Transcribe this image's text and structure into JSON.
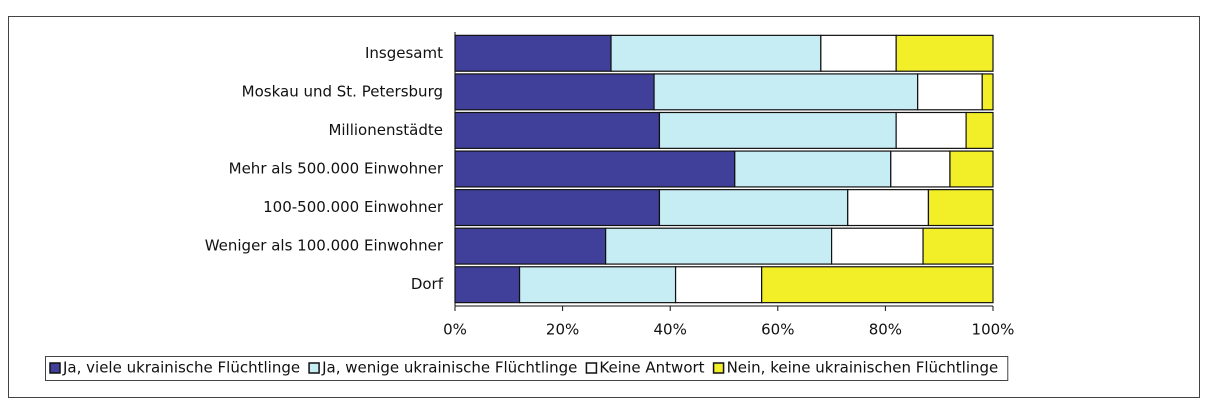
{
  "chart_data": {
    "type": "stacked_bar_horizontal",
    "categories": [
      "Insgesamt",
      "Moskau und St. Petersburg",
      "Millionenstädte",
      "Mehr als 500.000 Einwohner",
      "100-500.000 Einwohner",
      "Weniger als 100.000 Einwohner",
      "Dorf"
    ],
    "series": [
      {
        "name": "Ja, viele ukrainische Flüchtlinge",
        "color": "#40409a",
        "values": [
          29,
          37,
          38,
          52,
          38,
          28,
          12
        ]
      },
      {
        "name": "Ja, wenige ukrainische Flüchtlinge",
        "color": "#c6ecf4",
        "values": [
          39,
          49,
          44,
          29,
          35,
          42,
          29
        ]
      },
      {
        "name": "Keine Antwort",
        "color": "#ffffff",
        "values": [
          14,
          12,
          13,
          11,
          15,
          17,
          16
        ]
      },
      {
        "name": "Nein, keine ukrainischen Flüchtlinge",
        "color": "#f2ee28",
        "values": [
          18,
          2,
          5,
          8,
          12,
          13,
          43
        ]
      }
    ],
    "xlim": [
      0,
      100
    ],
    "xticks": [
      {
        "value": 0,
        "label": "0%"
      },
      {
        "value": 20,
        "label": "20%"
      },
      {
        "value": 40,
        "label": "40%"
      },
      {
        "value": 60,
        "label": "60%"
      },
      {
        "value": 80,
        "label": "80%"
      },
      {
        "value": 100,
        "label": "100%"
      }
    ],
    "legend": "bottom"
  }
}
